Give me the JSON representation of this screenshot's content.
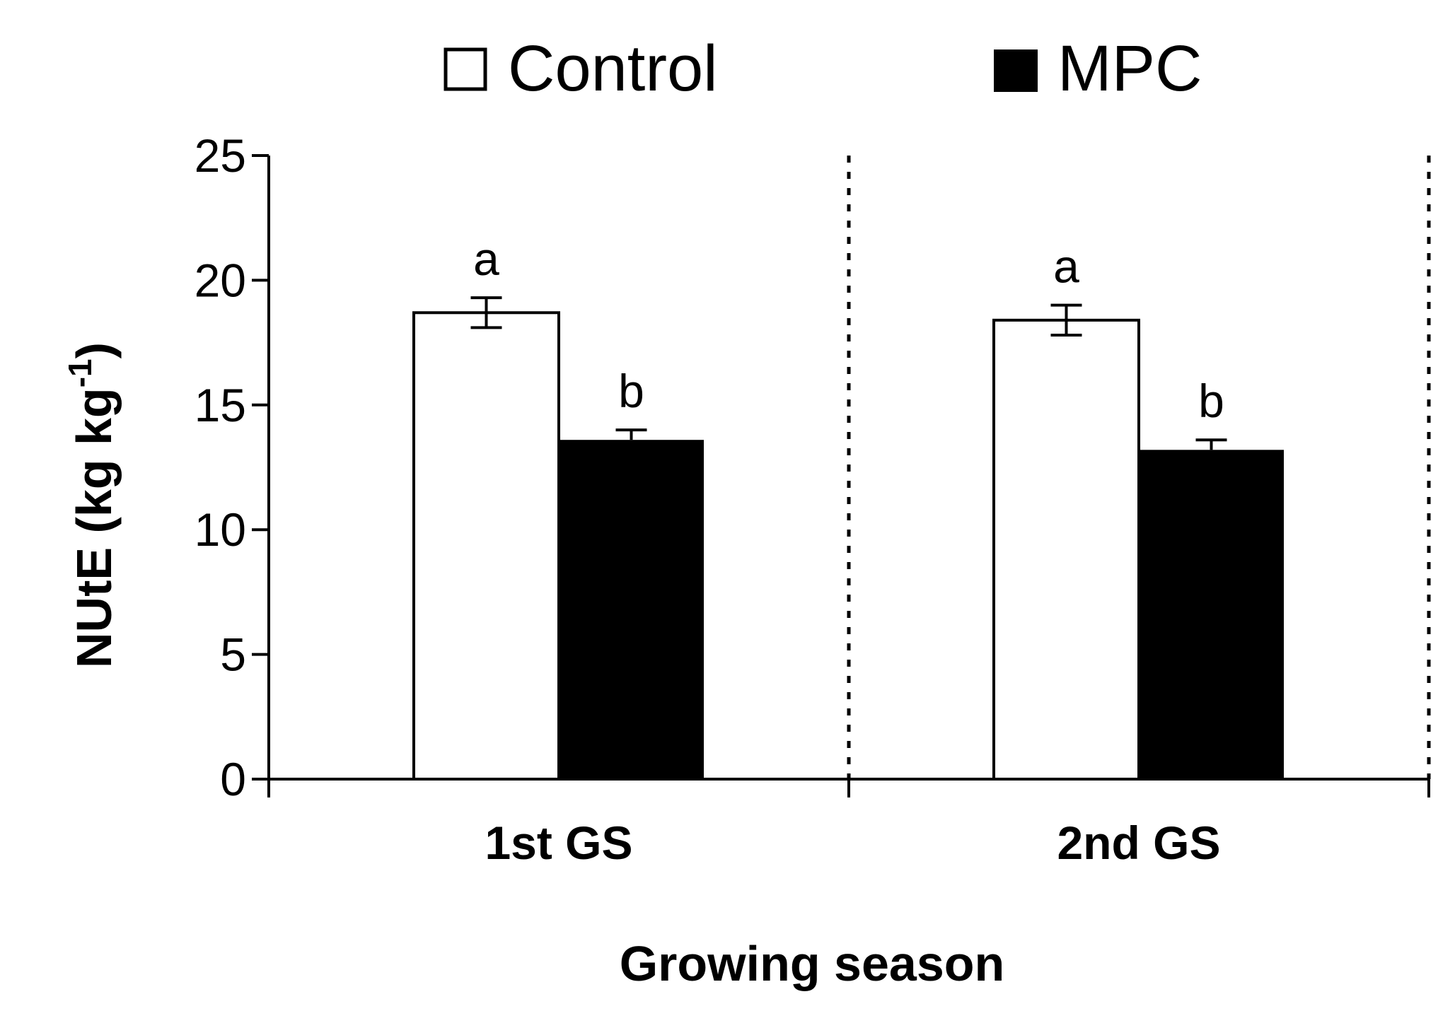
{
  "chart_data": {
    "type": "bar",
    "title": "",
    "xlabel": "Growing season",
    "ylabel": "NUtE (kg kg",
    "ylabel_superscript": "-1",
    "ylabel_close": ")",
    "categories": [
      "1st GS",
      "2nd GS"
    ],
    "ylim": [
      0,
      25
    ],
    "yticks": [
      "0",
      "5",
      "10",
      "15",
      "20",
      "25"
    ],
    "grid": false,
    "legend_position": "top",
    "series": [
      {
        "name": "Control",
        "color": "#ffffff",
        "values": [
          18.7,
          18.4
        ],
        "errors": [
          0.6,
          0.6
        ],
        "letters": [
          "a",
          "a"
        ]
      },
      {
        "name": "MPC",
        "color": "#000000",
        "values": [
          13.6,
          13.2
        ],
        "errors": [
          0.4,
          0.4
        ],
        "letters": [
          "b",
          "b"
        ]
      }
    ]
  }
}
